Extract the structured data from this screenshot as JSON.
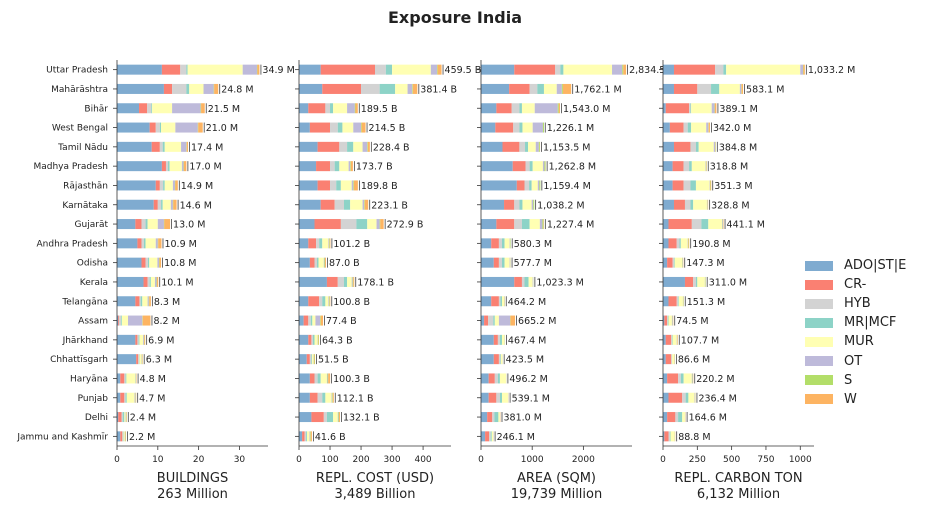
{
  "title": "Exposure India",
  "chart_data": {
    "type": "bar",
    "orientation": "horizontal",
    "stacked": true,
    "categories": [
      "Uttar Pradesh",
      "Mahārāshtra",
      "Bihār",
      "West Bengal",
      "Tamil Nādu",
      "Madhya Pradesh",
      "Rājasthān",
      "Karnātaka",
      "Gujarāt",
      "Andhra Pradesh",
      "Odisha",
      "Kerala",
      "Telangāna",
      "Assam",
      "Jhārkhand",
      "Chhattīsgarh",
      "Haryāna",
      "Punjab",
      "Delhi",
      "Jammu and Kashmīr"
    ],
    "series": [
      "ADO|ST|E",
      "CR-",
      "HYB",
      "MR|MCF",
      "MUR",
      "OT",
      "S",
      "W"
    ],
    "colors": {
      "ADO|ST|E": "#7fabd0",
      "CR-": "#fa8072",
      "HYB": "#d3d3d3",
      "MR|MCF": "#8dd3c7",
      "MUR": "#ffffb3",
      "OT": "#bebada",
      "S": "#b3de69",
      "W": "#fdb462"
    },
    "legend": "right",
    "grid": false,
    "panels": [
      {
        "key": "buildings",
        "xlabel": "BUILDINGS",
        "total": "263 Million",
        "xlim": [
          0,
          37
        ],
        "ticks": [
          0,
          10,
          20,
          30
        ],
        "labels": [
          "34.9 M",
          "24.8 M",
          "21.5 M",
          "21.0 M",
          "17.4 M",
          "17.0 M",
          "14.9 M",
          "14.6 M",
          "13.0 M",
          "10.9 M",
          "10.8 M",
          "10.1 M",
          "8.3 M",
          "8.2 M",
          "6.9 M",
          "6.3 M",
          "4.8 M",
          "4.7 M",
          "2.4 M",
          "2.2 M"
        ],
        "values": [
          [
            11.0,
            4.5,
            1.5,
            0.3,
            13.5,
            3.5,
            0.1,
            0.5
          ],
          [
            11.5,
            2.0,
            3.5,
            0.7,
            3.5,
            2.5,
            0.1,
            1.0
          ],
          [
            5.4,
            2.0,
            1.0,
            0.2,
            4.9,
            7.0,
            0.1,
            0.9
          ],
          [
            8.0,
            1.5,
            1.0,
            0.3,
            3.5,
            5.5,
            0.1,
            1.1
          ],
          [
            8.5,
            2.0,
            0.7,
            0.5,
            4.0,
            1.3,
            0.1,
            0.3
          ],
          [
            11.0,
            1.0,
            0.5,
            0.4,
            3.0,
            0.4,
            0.1,
            0.6
          ],
          [
            9.5,
            1.0,
            0.8,
            0.4,
            2.0,
            0.5,
            0.1,
            0.6
          ],
          [
            9.0,
            1.0,
            0.8,
            0.4,
            2.0,
            0.5,
            0.1,
            0.8
          ],
          [
            4.5,
            1.5,
            1.0,
            0.5,
            2.5,
            1.5,
            0.1,
            1.4
          ],
          [
            5.0,
            1.0,
            0.6,
            0.4,
            2.5,
            0.5,
            0.1,
            0.8
          ],
          [
            6.0,
            1.0,
            0.6,
            0.3,
            2.0,
            0.4,
            0.1,
            0.4
          ],
          [
            6.5,
            1.0,
            0.5,
            0.3,
            1.0,
            0.4,
            0.1,
            0.3
          ],
          [
            4.5,
            1.0,
            0.3,
            0.4,
            1.3,
            0.3,
            0.1,
            0.4
          ],
          [
            0.3,
            0.2,
            0.5,
            0.2,
            1.5,
            3.5,
            0.1,
            1.9
          ],
          [
            4.5,
            0.5,
            0.3,
            0.2,
            0.9,
            0.2,
            0.1,
            0.2
          ],
          [
            4.7,
            0.5,
            0.2,
            0.1,
            0.5,
            0.1,
            0.1,
            0.1
          ],
          [
            0.8,
            1.0,
            0.3,
            0.2,
            2.2,
            0.1,
            0.1,
            0.1
          ],
          [
            0.8,
            1.0,
            0.3,
            0.3,
            1.9,
            0.2,
            0.1,
            0.1
          ],
          [
            0.3,
            0.8,
            0.3,
            0.4,
            0.3,
            0.1,
            0.1,
            0.1
          ],
          [
            0.8,
            0.5,
            0.2,
            0.1,
            0.3,
            0.1,
            0.1,
            0.1
          ]
        ]
      },
      {
        "key": "cost",
        "xlabel": "REPL. COST (USD)",
        "total": "3,489 Billion",
        "xlim": [
          0,
          490
        ],
        "ticks": [
          0,
          100,
          200,
          300,
          400
        ],
        "labels": [
          "459.5 B",
          "381.4 B",
          "189.5 B",
          "214.5 B",
          "228.4 B",
          "173.7 B",
          "189.8 B",
          "223.1 B",
          "272.9 B",
          "101.2 B",
          "87.0 B",
          "178.1 B",
          "100.8 B",
          "77.4 B",
          "64.3 B",
          "51.5 B",
          "100.3 B",
          "112.1 B",
          "132.1 B",
          "41.6 B"
        ],
        "values": [
          [
            70,
            175,
            35,
            20,
            125,
            20,
            2,
            12.5
          ],
          [
            75,
            125,
            60,
            50,
            40,
            15,
            2,
            14.4
          ],
          [
            30,
            55,
            15,
            10,
            45,
            25,
            2,
            7.5
          ],
          [
            35,
            65,
            25,
            15,
            35,
            25,
            2,
            12.5
          ],
          [
            60,
            70,
            25,
            20,
            30,
            15,
            2,
            6.4
          ],
          [
            55,
            45,
            15,
            15,
            30,
            5,
            2,
            6.7
          ],
          [
            60,
            40,
            20,
            15,
            35,
            5,
            2,
            12.8
          ],
          [
            70,
            45,
            30,
            20,
            40,
            5,
            2,
            11.1
          ],
          [
            50,
            85,
            50,
            35,
            30,
            10,
            2,
            10.9
          ],
          [
            30,
            25,
            10,
            10,
            20,
            2,
            2,
            2.2
          ],
          [
            35,
            15,
            8,
            5,
            17,
            2,
            2,
            3
          ],
          [
            90,
            35,
            20,
            10,
            15,
            3,
            2,
            3.1
          ],
          [
            30,
            35,
            10,
            10,
            10,
            2,
            2,
            1.8
          ],
          [
            15,
            15,
            8,
            5,
            10,
            15,
            2,
            7.4
          ],
          [
            30,
            10,
            5,
            5,
            10,
            1,
            2,
            1.3
          ],
          [
            25,
            10,
            5,
            2,
            5,
            1,
            2,
            1.5
          ],
          [
            35,
            15,
            10,
            10,
            20,
            2,
            2,
            6.3
          ],
          [
            35,
            25,
            15,
            10,
            20,
            2,
            2,
            3.1
          ],
          [
            40,
            40,
            10,
            20,
            15,
            2,
            2,
            3.1
          ],
          [
            10,
            8,
            5,
            3,
            8,
            2,
            2,
            3.6
          ]
        ]
      },
      {
        "key": "area",
        "xlabel": "AREA (SQM)",
        "total": "19,739 Million",
        "xlim": [
          0,
          2950
        ],
        "ticks": [
          0,
          1000,
          2000
        ],
        "labels": [
          "2,834.5",
          "1,762.1 M",
          "1,543.0 M",
          "1,226.1 M",
          "1,153.5 M",
          "1,262.8 M",
          "1,159.4 M",
          "1,038.2 M",
          "1,227.4 M",
          "580.3 M",
          "577.7 M",
          "1,023.3 M",
          "464.2 M",
          "665.2 M",
          "467.4 M",
          "423.5 M",
          "496.2 M",
          "539.1 M",
          "381.0 M",
          "246.1 M"
        ],
        "values": [
          [
            650,
            800,
            100,
            60,
            950,
            200,
            20,
            54.5
          ],
          [
            550,
            400,
            150,
            130,
            250,
            100,
            20,
            162.1
          ],
          [
            300,
            300,
            150,
            50,
            250,
            450,
            20,
            23
          ],
          [
            280,
            350,
            120,
            60,
            200,
            200,
            20,
            -3.9
          ],
          [
            420,
            330,
            110,
            60,
            150,
            60,
            20,
            3.5
          ],
          [
            620,
            250,
            80,
            60,
            200,
            30,
            20,
            2.8
          ],
          [
            700,
            150,
            90,
            50,
            120,
            30,
            20,
            -0.6
          ],
          [
            450,
            200,
            100,
            60,
            180,
            30,
            20,
            -1.8
          ],
          [
            300,
            350,
            150,
            150,
            200,
            50,
            20,
            7.4
          ],
          [
            200,
            150,
            60,
            50,
            100,
            10,
            10,
            0.3
          ],
          [
            250,
            100,
            60,
            50,
            100,
            10,
            5,
            2.7
          ],
          [
            650,
            150,
            50,
            80,
            80,
            10,
            3,
            0.3
          ],
          [
            200,
            150,
            30,
            30,
            40,
            5,
            5,
            4.2
          ],
          [
            60,
            80,
            100,
            30,
            80,
            220,
            5,
            90.2
          ],
          [
            250,
            80,
            40,
            40,
            50,
            5,
            2,
            0.4
          ],
          [
            250,
            100,
            30,
            10,
            30,
            2,
            1,
            0.5
          ],
          [
            150,
            120,
            60,
            40,
            120,
            3,
            2,
            1.2
          ],
          [
            150,
            150,
            70,
            40,
            120,
            4,
            2,
            3.1
          ],
          [
            120,
            100,
            40,
            80,
            30,
            3,
            2,
            6
          ],
          [
            80,
            80,
            30,
            20,
            30,
            3,
            1,
            2.1
          ]
        ]
      },
      {
        "key": "carbon",
        "xlabel": "REPL. CARBON TON",
        "total": "6,132 Million",
        "xlim": [
          0,
          1100
        ],
        "ticks": [
          0,
          250,
          500,
          750,
          1000
        ],
        "labels": [
          "1,033.2 M",
          "583.1 M",
          "389.1 M",
          "342.0 M",
          "384.8 M",
          "318.8 M",
          "351.3 M",
          "328.8 M",
          "441.1 M",
          "190.8 M",
          "147.3 M",
          "311.0 M",
          "151.3 M",
          "74.5 M",
          "107.7 M",
          "86.6 M",
          "220.2 M",
          "236.4 M",
          "164.6 M",
          "88.8 M"
        ],
        "values": [
          [
            80,
            300,
            60,
            20,
            540,
            20,
            3,
            10.2
          ],
          [
            80,
            170,
            100,
            60,
            150,
            10,
            3,
            10.1
          ],
          [
            20,
            170,
            10,
            5,
            150,
            20,
            3,
            11.1
          ],
          [
            50,
            100,
            30,
            25,
            110,
            15,
            3,
            9
          ],
          [
            80,
            120,
            40,
            20,
            110,
            10,
            3,
            1.8
          ],
          [
            70,
            80,
            40,
            20,
            100,
            3,
            3,
            2.8
          ],
          [
            70,
            80,
            50,
            40,
            100,
            3,
            3,
            5.3
          ],
          [
            80,
            80,
            40,
            20,
            100,
            3,
            3,
            2.8
          ],
          [
            40,
            170,
            70,
            50,
            100,
            5,
            3,
            3.1
          ],
          [
            40,
            60,
            20,
            10,
            50,
            3,
            3,
            4.8
          ],
          [
            30,
            40,
            10,
            5,
            55,
            2,
            3,
            2.3
          ],
          [
            160,
            60,
            20,
            10,
            55,
            2,
            3,
            1
          ],
          [
            40,
            60,
            10,
            5,
            30,
            2,
            3,
            1.3
          ],
          [
            10,
            20,
            5,
            5,
            25,
            5,
            2,
            2.5
          ],
          [
            20,
            40,
            5,
            5,
            30,
            2,
            2,
            3.7
          ],
          [
            20,
            40,
            5,
            2,
            15,
            1,
            2,
            1.6
          ],
          [
            30,
            80,
            20,
            20,
            60,
            5,
            3,
            2.2
          ],
          [
            40,
            100,
            25,
            20,
            45,
            3,
            2,
            1.4
          ],
          [
            30,
            60,
            20,
            30,
            20,
            2,
            1,
            1.6
          ],
          [
            10,
            30,
            10,
            5,
            30,
            1,
            1,
            1.8
          ]
        ]
      }
    ]
  }
}
